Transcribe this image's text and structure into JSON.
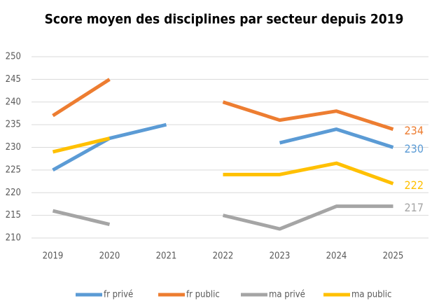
{
  "chart_data": {
    "type": "line",
    "title": "Score moyen des disciplines par secteur depuis 2019",
    "categories": [
      "2019",
      "2020",
      "2021",
      "2022",
      "2023",
      "2024",
      "2025"
    ],
    "series": [
      {
        "name": "fr  privé",
        "color": "#5b9bd5",
        "values": [
          225,
          232,
          235,
          null,
          231,
          234,
          230
        ]
      },
      {
        "name": "fr  public",
        "color": "#ed7d31",
        "values": [
          237,
          245,
          null,
          240,
          236,
          238,
          234
        ]
      },
      {
        "name": "ma  privé",
        "color": "#a5a5a5",
        "values": [
          216,
          213,
          null,
          215,
          212,
          217,
          217
        ]
      },
      {
        "name": "ma  public",
        "color": "#ffc000",
        "values": [
          229,
          232,
          null,
          224,
          224,
          226.5,
          222
        ]
      }
    ],
    "ylim": [
      210,
      250
    ],
    "yticks": [
      210,
      215,
      220,
      225,
      230,
      235,
      240,
      245,
      250
    ],
    "grid": true,
    "legend": "bottom"
  }
}
